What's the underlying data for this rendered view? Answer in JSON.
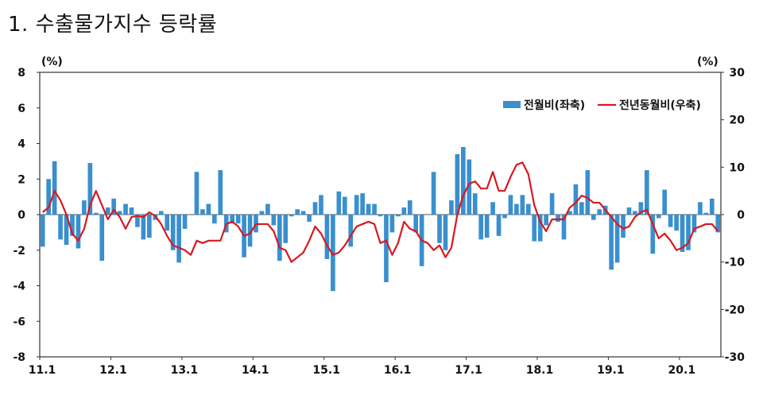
{
  "title": "1. 수출물가지수 등락률",
  "chart_data": {
    "type": "bar+line",
    "left_axis": {
      "unit_label": "(%)",
      "min": -8,
      "max": 8,
      "ticks": [
        8,
        6,
        4,
        2,
        0,
        -2,
        -4,
        -6,
        -8
      ]
    },
    "right_axis": {
      "unit_label": "(%)",
      "min": -30,
      "max": 30,
      "ticks": [
        30,
        20,
        10,
        0,
        -10,
        -20,
        -30
      ]
    },
    "x_tick_labels": [
      "11.1",
      "12.1",
      "13.1",
      "14.1",
      "15.1",
      "16.1",
      "17.1",
      "18.1",
      "19.1",
      "20.1"
    ],
    "x_start": "2011-01",
    "months_per_tick": 12,
    "legend_position": "top-right",
    "series": [
      {
        "name": "전월비(좌축)",
        "type": "bar",
        "axis": "left",
        "color": "#3a8fce",
        "values": [
          -1.8,
          2.0,
          3.0,
          -1.4,
          -1.7,
          -1.2,
          -1.9,
          0.8,
          2.9,
          0.1,
          -2.6,
          0.4,
          0.9,
          0.2,
          0.6,
          0.4,
          -0.7,
          -1.4,
          -1.3,
          -0.3,
          0.2,
          -0.9,
          -2.0,
          -2.7,
          -0.8,
          0.0,
          2.4,
          0.3,
          0.6,
          -0.5,
          2.5,
          -1.0,
          -0.5,
          -0.5,
          -2.4,
          -1.8,
          -1.0,
          0.2,
          0.6,
          -0.6,
          -2.6,
          -1.6,
          -0.1,
          0.3,
          0.2,
          -0.4,
          0.7,
          1.1,
          -2.5,
          -4.3,
          1.3,
          1.0,
          -1.8,
          1.1,
          1.2,
          0.6,
          0.6,
          -0.1,
          -3.8,
          -1.0,
          -0.1,
          0.4,
          0.8,
          -1.0,
          -2.9,
          0.0,
          2.4,
          -1.6,
          -2.0,
          0.8,
          3.4,
          3.8,
          3.1,
          1.2,
          -1.4,
          -1.3,
          0.7,
          -1.2,
          -0.2,
          1.1,
          0.6,
          1.1,
          0.6,
          -1.5,
          -1.5,
          -0.6,
          1.2,
          -0.4,
          -1.4,
          0.2,
          1.7,
          0.7,
          2.5,
          -0.3,
          0.3,
          0.5,
          -3.1,
          -2.7,
          -1.3,
          0.4,
          0.2,
          0.7,
          2.5,
          -2.2,
          -0.2,
          1.4,
          -0.7,
          -0.9,
          -2.1,
          -2.0,
          -1.0,
          0.7,
          0.1,
          0.9,
          -1.0
        ]
      },
      {
        "name": "전년동월비(우축)",
        "type": "line",
        "axis": "right",
        "color": "#d71920",
        "values": [
          0.5,
          1.5,
          5.0,
          3.0,
          0.0,
          -4.0,
          -5.5,
          -3.0,
          2.0,
          5.0,
          2.0,
          -1.0,
          1.0,
          -0.5,
          -3.0,
          -0.5,
          -0.3,
          -0.5,
          0.5,
          -0.3,
          -2.0,
          -4.5,
          -6.5,
          -7.0,
          -7.5,
          -8.5,
          -5.5,
          -6.0,
          -5.5,
          -5.5,
          -5.5,
          -2.0,
          -1.5,
          -2.5,
          -4.5,
          -4.0,
          -2.0,
          -2.0,
          -2.0,
          -3.5,
          -7.0,
          -7.5,
          -10.0,
          -9.0,
          -8.0,
          -5.5,
          -2.5,
          -4.0,
          -6.5,
          -8.5,
          -8.0,
          -6.5,
          -4.5,
          -2.5,
          -2.0,
          -1.5,
          -2.0,
          -6.0,
          -5.5,
          -8.5,
          -6.0,
          -1.5,
          -3.0,
          -3.5,
          -5.5,
          -6.0,
          -7.5,
          -6.5,
          -9.0,
          -7.0,
          0.0,
          4.0,
          6.5,
          7.0,
          5.5,
          5.5,
          9.0,
          5.0,
          5.0,
          8.0,
          10.5,
          11.0,
          8.5,
          2.0,
          -1.5,
          -3.5,
          -1.0,
          -1.0,
          -1.0,
          1.5,
          2.5,
          4.0,
          3.5,
          2.5,
          2.5,
          1.0,
          -0.5,
          -2.0,
          -3.0,
          -2.5,
          -0.5,
          0.5,
          1.0,
          -2.0,
          -5.0,
          -4.0,
          -5.5,
          -7.5,
          -7.0,
          -6.0,
          -3.0,
          -2.5,
          -2.0,
          -2.0,
          -3.5
        ]
      }
    ]
  }
}
